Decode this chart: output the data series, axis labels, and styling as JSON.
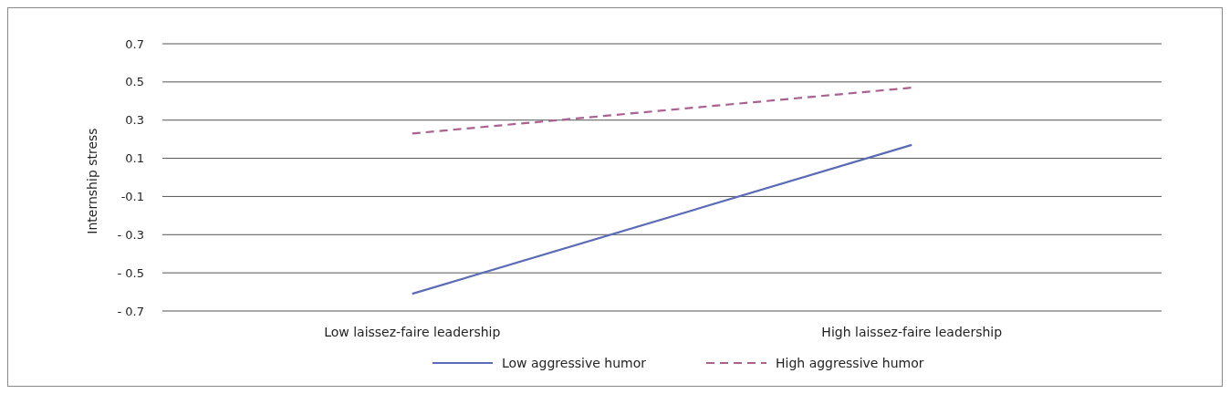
{
  "chart_data": {
    "type": "line",
    "ylabel": "Internship stress",
    "categories": [
      "Low laissez-faire leadership",
      "High laissez-faire leadership"
    ],
    "series": [
      {
        "name": "Low aggressive humor",
        "color": "#5b6bb5",
        "values": [
          -0.61,
          0.17
        ],
        "line_style": "solid"
      },
      {
        "name": "High aggressive humor",
        "color": "#a9628f",
        "values": [
          0.23,
          0.47
        ],
        "line_style": "dashed"
      }
    ],
    "ylim": [
      -0.7,
      0.7
    ],
    "yticks": [
      0.7,
      0.5,
      0.3,
      0.1,
      -0.1,
      {
        "value": -0.3,
        "label": "- 0.3"
      },
      {
        "value": -0.5,
        "label": "- 0.5"
      },
      {
        "value": -0.7,
        "label": "- 0.7"
      }
    ],
    "grid": "y",
    "legend": "bottom",
    "marker": "none"
  }
}
